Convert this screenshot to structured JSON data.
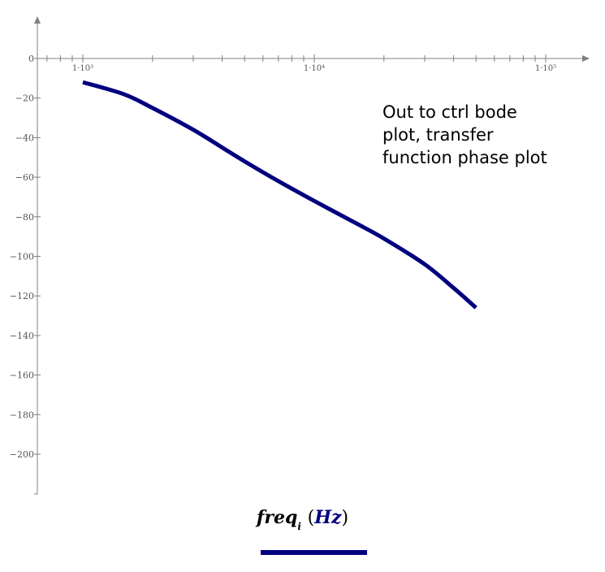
{
  "chart_data": {
    "type": "line",
    "title": "",
    "annotation_lines": [
      "Out to ctrl bode",
      "plot, transfer",
      "function phase plot"
    ],
    "xlabel": {
      "var": "freq",
      "subscript": "i",
      "open_paren": "(",
      "unit": "Hz",
      "close_paren": ")"
    },
    "ylabel": "",
    "x_scale": "log",
    "xlim": [
      500,
      150000
    ],
    "ylim": [
      -220,
      20
    ],
    "x_ticks": [
      {
        "value": 1000,
        "label": "1·10³"
      },
      {
        "value": 10000,
        "label": "1·10⁴"
      },
      {
        "value": 100000,
        "label": "1·10⁵"
      }
    ],
    "y_ticks": [
      0,
      -20,
      -40,
      -60,
      -80,
      -100,
      -120,
      -140,
      -160,
      -180,
      -200
    ],
    "y_tick_labels": [
      "0",
      "−20",
      "−40",
      "−60",
      "−80",
      "−100",
      "−120",
      "−140",
      "−160",
      "−180",
      "−200"
    ],
    "grid": false,
    "series": [
      {
        "color": "#00007f",
        "x": [
          1000,
          1500,
          2000,
          3000,
          4000,
          5000,
          7000,
          10000,
          15000,
          20000,
          30000,
          40000,
          50000
        ],
        "y": [
          -12,
          -18,
          -25,
          -36,
          -45,
          -52,
          -62,
          -72,
          -83,
          -91,
          -104,
          -116,
          -126
        ]
      }
    ]
  }
}
